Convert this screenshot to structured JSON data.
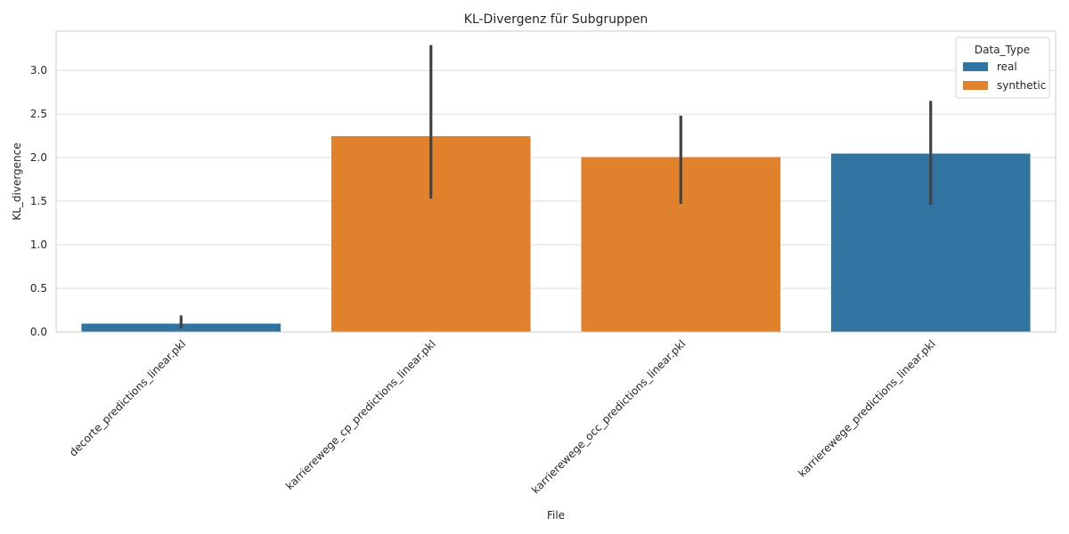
{
  "chart_data": {
    "type": "bar",
    "title": "KL-Divergenz für Subgruppen",
    "xlabel": "File",
    "ylabel": "KL_divergence",
    "categories": [
      "decorte_predictions_linear.pkl",
      "karrierewege_cp_predictions_linear.pkl",
      "karrierewege_occ_predictions_linear.pkl",
      "karrierewege_predictions_linear.pkl"
    ],
    "values": [
      0.1,
      2.25,
      2.01,
      2.05
    ],
    "error_low": [
      0.04,
      1.53,
      1.47,
      1.46
    ],
    "error_high": [
      0.19,
      3.29,
      2.48,
      2.65
    ],
    "bar_group": [
      "real",
      "synthetic",
      "synthetic",
      "real"
    ],
    "ylim": [
      0,
      3.45
    ],
    "yticks": [
      0.0,
      0.5,
      1.0,
      1.5,
      2.0,
      2.5,
      3.0
    ],
    "ytick_labels": [
      "0.0",
      "0.5",
      "1.0",
      "1.5",
      "2.0",
      "2.5",
      "3.0"
    ],
    "grid": true,
    "legend": {
      "title": "Data_Type",
      "position": "top-right",
      "entries": [
        {
          "name": "real",
          "color": "#3274a1"
        },
        {
          "name": "synthetic",
          "color": "#e1812c"
        }
      ]
    },
    "colors": {
      "real": "#3274a1",
      "synthetic": "#e1812c",
      "errorbar": "#424242",
      "grid": "#dcdcdc",
      "axes_edge": "#cccccc"
    }
  }
}
